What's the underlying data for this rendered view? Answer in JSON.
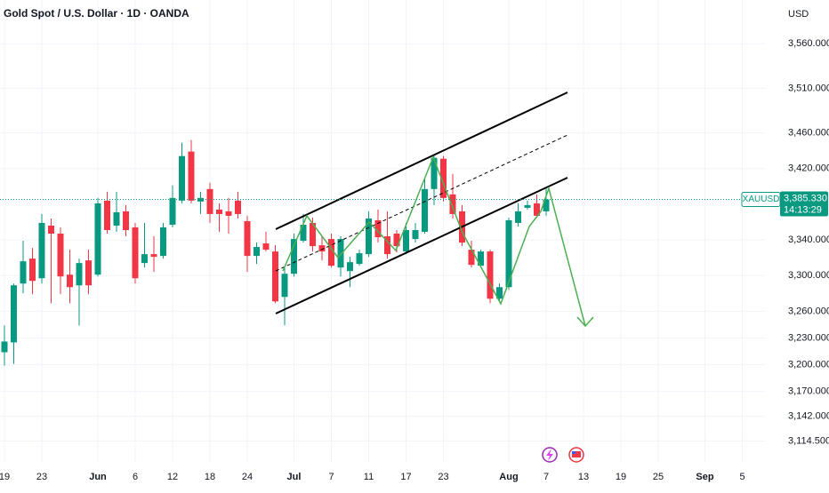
{
  "chart_data": {
    "type": "candlestick",
    "title": "Gold Spot / U.S. Dollar · 1D · OANDA",
    "currency": "USD",
    "symbol": "XAUUSD",
    "countdown": "14:13:29",
    "last_price": {
      "value": 3385.33,
      "label": "3,385.330"
    },
    "up_color": "#089981",
    "down_color": "#f23645",
    "grid": true,
    "categories": [
      "19",
      null,
      null,
      null,
      "23",
      null,
      null,
      null,
      null,
      null,
      "Jun",
      null,
      null,
      null,
      "6",
      null,
      null,
      null,
      "12",
      null,
      null,
      null,
      "18",
      null,
      null,
      null,
      "24",
      null,
      null,
      null,
      null,
      "Jul",
      null,
      null,
      null,
      "7",
      null,
      null,
      null,
      "11",
      null,
      null,
      null,
      "17",
      null,
      null,
      null,
      "23",
      null,
      null,
      null,
      null,
      null,
      null,
      "Aug",
      null,
      null,
      null,
      "7",
      null,
      null,
      null,
      "13",
      null,
      null,
      null,
      "19",
      null,
      null,
      null,
      "25",
      null,
      null,
      null,
      null,
      "Sep",
      null,
      null,
      null,
      "5"
    ],
    "open": [
      3214,
      3225,
      3291,
      3319,
      3297,
      3356,
      3347,
      3301,
      3289,
      3317,
      3301,
      3384,
      3356,
      3372,
      3354,
      3314,
      3324,
      3322,
      3357,
      3384,
      3439,
      3383,
      3397,
      3374,
      3372,
      3384,
      3361,
      3322,
      3336,
      3327,
      3276,
      3302,
      3339,
      3359,
      3334,
      3341,
      3309,
      3305,
      3313,
      3324,
      3362,
      3344,
      3347,
      3327,
      3341,
      3349,
      3397,
      3431,
      3391,
      3372,
      3329,
      3311,
      3327,
      3274,
      3287,
      3359,
      3376,
      3381,
      3372,
      null,
      null,
      null,
      null,
      null,
      null,
      null,
      null,
      null,
      null,
      null,
      null,
      null,
      null,
      null,
      null,
      null,
      null,
      null,
      null,
      null
    ],
    "high": [
      3244,
      3291,
      3339,
      3331,
      3369,
      3364,
      3354,
      3329,
      3319,
      3329,
      3387,
      3394,
      3394,
      3379,
      3359,
      3359,
      3344,
      3359,
      3401,
      3449,
      3452,
      3394,
      3404,
      3381,
      3387,
      3394,
      3367,
      3337,
      3349,
      3334,
      3309,
      3347,
      3369,
      3365,
      3344,
      3347,
      3344,
      3321,
      3329,
      3372,
      3374,
      3372,
      3351,
      3359,
      3359,
      3409,
      3434,
      3434,
      3414,
      3379,
      3339,
      3329,
      3329,
      3291,
      3365,
      3381,
      3384,
      3391,
      3399,
      null,
      null,
      null,
      null,
      null,
      null,
      null,
      null,
      null,
      null,
      null,
      null,
      null,
      null,
      null,
      null,
      null,
      null,
      null,
      null,
      null
    ],
    "low": [
      3199,
      3201,
      3280,
      3279,
      3291,
      3269,
      3279,
      3269,
      3244,
      3279,
      3299,
      3347,
      3349,
      3344,
      3291,
      3309,
      3304,
      3319,
      3354,
      3381,
      3381,
      3369,
      3359,
      3349,
      3347,
      3364,
      3304,
      3313,
      3327,
      3269,
      3244,
      3299,
      3337,
      3327,
      3317,
      3309,
      3299,
      3287,
      3311,
      3321,
      3337,
      3319,
      3326,
      3324,
      3337,
      3347,
      3379,
      3383,
      3364,
      3333,
      3309,
      3309,
      3269,
      3271,
      3284,
      3355,
      3374,
      3365,
      3367,
      null,
      null,
      null,
      null,
      null,
      null,
      null,
      null,
      null,
      null,
      null,
      null,
      null,
      null,
      null,
      null,
      null,
      null,
      null,
      null,
      null
    ],
    "close": [
      3226,
      3289,
      3316,
      3294,
      3359,
      3347,
      3299,
      3287,
      3314,
      3289,
      3381,
      3351,
      3371,
      3351,
      3297,
      3324,
      3321,
      3354,
      3387,
      3434,
      3384,
      3387,
      3369,
      3369,
      3367,
      3369,
      3322,
      3332,
      3329,
      3271,
      3302,
      3341,
      3357,
      3333,
      3327,
      3311,
      3341,
      3315,
      3325,
      3364,
      3343,
      3324,
      3333,
      3351,
      3351,
      3397,
      3432,
      3387,
      3369,
      3337,
      3312,
      3327,
      3274,
      3287,
      3362,
      3372,
      3379,
      3367,
      3385.33,
      null,
      null,
      null,
      null,
      null,
      null,
      null,
      null,
      null,
      null,
      null,
      null,
      null,
      null,
      null,
      null,
      null,
      null,
      null,
      null,
      null
    ],
    "ylim": [
      3091,
      3609
    ],
    "yticks": [
      {
        "value": 3560,
        "label": "3,560.000"
      },
      {
        "value": 3510,
        "label": "3,510.000"
      },
      {
        "value": 3460,
        "label": "3,460.000"
      },
      {
        "value": 3420,
        "label": "3,420.000"
      },
      {
        "value": 3340,
        "label": "3,340.000"
      },
      {
        "value": 3300,
        "label": "3,300.000"
      },
      {
        "value": 3260,
        "label": "3,260.000"
      },
      {
        "value": 3230,
        "label": "3,230.000"
      },
      {
        "value": 3200,
        "label": "3,200.000"
      },
      {
        "value": 3170,
        "label": "3,170.000"
      },
      {
        "value": 3142,
        "label": "3,142.000"
      },
      {
        "value": 3114.5,
        "label": "3,114.500"
      }
    ]
  }
}
